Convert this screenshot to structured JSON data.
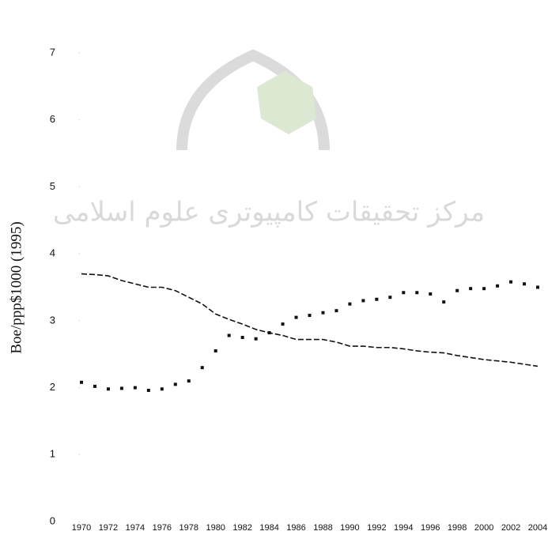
{
  "chart_data": {
    "type": "line",
    "y_label": "Boe/ppp$1000 (1995)",
    "watermark": "مرکز تحقیقات کامپیوتری علوم اسلامی",
    "x": [
      1970,
      1971,
      1972,
      1973,
      1974,
      1975,
      1976,
      1977,
      1978,
      1979,
      1980,
      1981,
      1982,
      1983,
      1984,
      1985,
      1986,
      1987,
      1988,
      1989,
      1990,
      1991,
      1992,
      1993,
      1994,
      1995,
      1996,
      1997,
      1998,
      1999,
      2000,
      2001,
      2002,
      2003,
      2004
    ],
    "series": [
      {
        "color": "#111111",
        "style": "dashed",
        "values": [
          3.7,
          3.69,
          3.67,
          3.6,
          3.55,
          3.5,
          3.5,
          3.45,
          3.35,
          3.25,
          3.1,
          3.02,
          2.95,
          2.87,
          2.82,
          2.78,
          2.72,
          2.72,
          2.72,
          2.68,
          2.62,
          2.62,
          2.6,
          2.6,
          2.58,
          2.55,
          2.53,
          2.52,
          2.48,
          2.45,
          2.42,
          2.4,
          2.38,
          2.35,
          2.32
        ]
      },
      {
        "color": "#111111",
        "style": "dotted",
        "values": [
          2.08,
          2.02,
          1.98,
          1.99,
          2.0,
          1.96,
          1.98,
          2.05,
          2.1,
          2.3,
          2.55,
          2.78,
          2.75,
          2.73,
          2.82,
          2.95,
          3.05,
          3.08,
          3.12,
          3.15,
          3.25,
          3.3,
          3.32,
          3.35,
          3.42,
          3.42,
          3.4,
          3.28,
          3.45,
          3.48,
          3.48,
          3.52,
          3.58,
          3.55,
          3.5
        ]
      }
    ],
    "xlim": [
      1970,
      2004
    ],
    "xticks": [
      1970,
      1972,
      1974,
      1976,
      1978,
      1980,
      1982,
      1984,
      1986,
      1988,
      1990,
      1992,
      1994,
      1996,
      1998,
      2000,
      2002,
      2004
    ],
    "ylim": [
      0,
      7
    ],
    "yticks": [
      0,
      1,
      2,
      3,
      4,
      5,
      6,
      7
    ],
    "grid": false
  }
}
